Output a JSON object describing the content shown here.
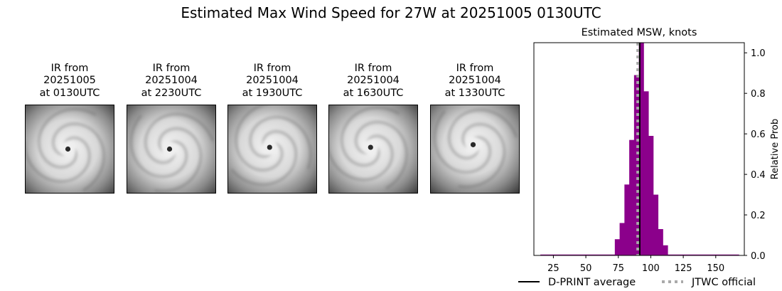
{
  "figure": {
    "title": "Estimated Max Wind Speed for 27W at 20251005 0130UTC"
  },
  "ir_panels": [
    {
      "line1": "IR from",
      "line2": "20251005",
      "line3": "at 0130UTC",
      "eye_x": 0.48,
      "eye_y": 0.5
    },
    {
      "line1": "IR from",
      "line2": "20251004",
      "line3": "at 2230UTC",
      "eye_x": 0.48,
      "eye_y": 0.5
    },
    {
      "line1": "IR from",
      "line2": "20251004",
      "line3": "at 1930UTC",
      "eye_x": 0.47,
      "eye_y": 0.48
    },
    {
      "line1": "IR from",
      "line2": "20251004",
      "line3": "at 1630UTC",
      "eye_x": 0.47,
      "eye_y": 0.48
    },
    {
      "line1": "IR from",
      "line2": "20251004",
      "line3": "at 1330UTC",
      "eye_x": 0.48,
      "eye_y": 0.45
    }
  ],
  "chart_data": {
    "type": "bar",
    "title": "Estimated MSW, knots",
    "ylabel": "Relative Prob",
    "xlim": [
      10,
      172
    ],
    "ylim": [
      0,
      1.05
    ],
    "x_ticks": [
      25,
      50,
      75,
      100,
      125,
      150
    ],
    "y_ticks": [
      0.0,
      0.2,
      0.4,
      0.6,
      0.8,
      1.0
    ],
    "y_tick_labels": [
      "0.0",
      "0.2",
      "0.4",
      "0.6",
      "0.8",
      "1.0"
    ],
    "bin_width": 3.7,
    "bar_color": "#8b008b",
    "bins": [
      {
        "x": 72.3,
        "value": 0.08
      },
      {
        "x": 76.0,
        "value": 0.16
      },
      {
        "x": 79.7,
        "value": 0.35
      },
      {
        "x": 83.4,
        "value": 0.57
      },
      {
        "x": 87.1,
        "value": 0.89
      },
      {
        "x": 90.8,
        "value": 1.05
      },
      {
        "x": 94.5,
        "value": 0.81
      },
      {
        "x": 98.2,
        "value": 0.59
      },
      {
        "x": 101.9,
        "value": 0.3
      },
      {
        "x": 105.6,
        "value": 0.13
      },
      {
        "x": 109.3,
        "value": 0.05
      }
    ],
    "baseline_range": [
      15,
      168
    ],
    "dprint_average": 91.5,
    "jtwc_official": 90,
    "legend": [
      {
        "label": "D-PRINT average",
        "color": "#000000",
        "style": "solid"
      },
      {
        "label": "JTWC official",
        "color": "#aaaaaa",
        "style": "dotted"
      }
    ],
    "legend_placement": "bottom-right"
  }
}
